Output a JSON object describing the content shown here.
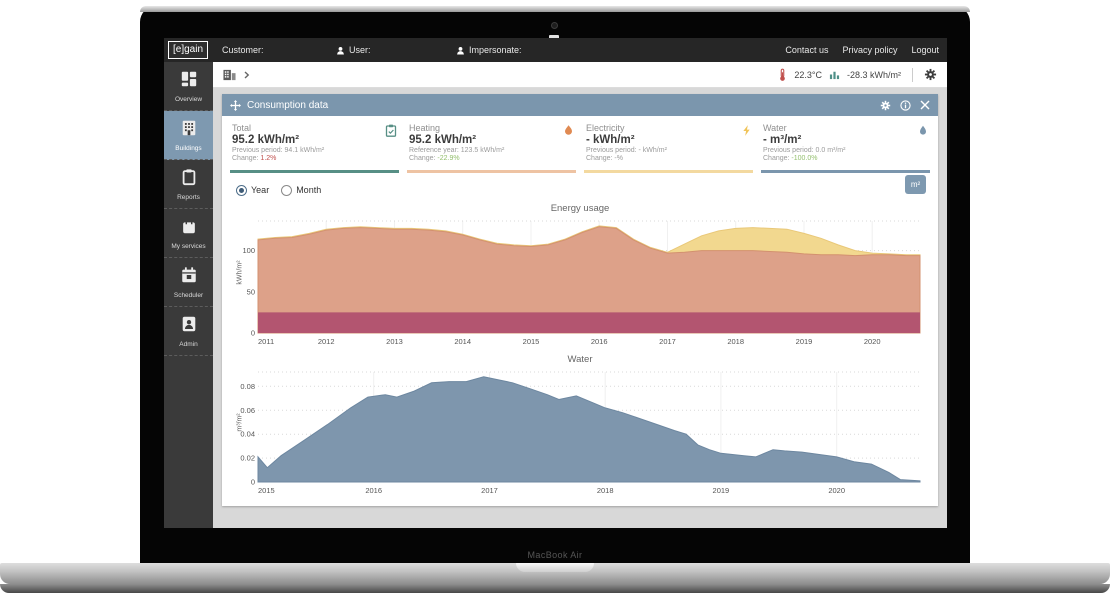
{
  "laptop": {
    "model_label": "MacBook Air"
  },
  "topbar": {
    "logo": "[e]gain",
    "customer_label": "Customer:",
    "user_label": "User:",
    "impersonate_label": "Impersonate:",
    "links": {
      "contact": "Contact us",
      "privacy": "Privacy policy",
      "logout": "Logout"
    }
  },
  "toolbar": {
    "temperature": "22.3°C",
    "energy_delta": "-28.3 kWh/m²"
  },
  "sidebar": {
    "active_color": "#7e99b0",
    "items": [
      {
        "label": "Overview",
        "icon": "grid-icon",
        "active": false
      },
      {
        "label": "Buildings",
        "icon": "building-icon",
        "active": true
      },
      {
        "label": "Reports",
        "icon": "clipboard-icon",
        "active": false
      },
      {
        "label": "My services",
        "icon": "bag-icon",
        "active": false
      },
      {
        "label": "Scheduler",
        "icon": "calendar-icon",
        "active": false
      },
      {
        "label": "Admin",
        "icon": "admin-icon",
        "active": false
      }
    ]
  },
  "panel": {
    "title": "Consumption data",
    "stats": [
      {
        "title": "Total",
        "value": "95.2 kWh/m²",
        "line1": "Previous period: 94.1 kWh/m²",
        "change_label": "Change:",
        "change": "1.2%",
        "change_color": "#c0504d",
        "accent": "#578f85",
        "icon": "clipboard-check-icon",
        "icon_color": "#578f85"
      },
      {
        "title": "Heating",
        "value": "95.2 kWh/m²",
        "line1": "Reference year: 123.5 kWh/m²",
        "change_label": "Change:",
        "change": "-22.9%",
        "change_color": "#93bf6d",
        "accent": "#eec3a3",
        "icon": "flame-icon",
        "icon_color": "#e08a52"
      },
      {
        "title": "Electricity",
        "value": "- kWh/m²",
        "line1": "Previous period: - kWh/m²",
        "change_label": "Change:",
        "change": "-%",
        "change_color": "#9b9b9b",
        "accent": "#f3d9a0",
        "icon": "lightning-icon",
        "icon_color": "#f0c45a"
      },
      {
        "title": "Water",
        "value": "- m³/m²",
        "line1": "Previous period: 0.0 m³/m²",
        "change_label": "Change:",
        "change": "-100.0%",
        "change_color": "#93bf6d",
        "accent": "#7b96ad",
        "icon": "droplet-icon",
        "icon_color": "#7b96ad"
      }
    ],
    "period_options": [
      {
        "label": "Year",
        "selected": true
      },
      {
        "label": "Month",
        "selected": false
      }
    ],
    "unit_button": "m²"
  },
  "colors": {
    "panel_header": "#7b96ad",
    "topbar_bg": "#262626",
    "sidebar_bg": "#3a3a3a",
    "teal": "#578f85",
    "salmon": "#dda189",
    "yellow": "#f2d88f",
    "red_band": "#b35570",
    "water_blue": "#7e96ad"
  },
  "chart_data": [
    {
      "type": "area",
      "title": "Energy usage",
      "ylabel": "kWh/m²",
      "ylim": [
        0,
        136
      ],
      "yticks": [
        0,
        50,
        100
      ],
      "xlim": [
        2011,
        2020.7
      ],
      "xticks": [
        2011,
        2012,
        2013,
        2014,
        2015,
        2016,
        2017,
        2018,
        2019,
        2020
      ],
      "mode": "series painted in order, each filled from 0 to value (overlay)",
      "x": [
        2011,
        2011.25,
        2011.5,
        2011.75,
        2012,
        2012.25,
        2012.5,
        2012.75,
        2013,
        2013.25,
        2013.5,
        2013.75,
        2014,
        2014.25,
        2014.5,
        2014.75,
        2015,
        2015.25,
        2015.5,
        2015.75,
        2016,
        2016.25,
        2016.5,
        2016.75,
        2017,
        2017.25,
        2017.5,
        2017.75,
        2018,
        2018.25,
        2018.5,
        2018.75,
        2019,
        2019.25,
        2019.5,
        2019.75,
        2020,
        2020.25,
        2020.5,
        2020.7
      ],
      "series": [
        {
          "name": "total-with-electricity-yellow",
          "color": "#f2d88f",
          "line": "#e9c878",
          "values": [
            114,
            116,
            117,
            121,
            126,
            128,
            129,
            128,
            127,
            127,
            126,
            124,
            120,
            114,
            109,
            107,
            106,
            108,
            114,
            123,
            130,
            128,
            114,
            104,
            98,
            108,
            118,
            124,
            127,
            128,
            127,
            126,
            121,
            115,
            107,
            100,
            97,
            96,
            95,
            95
          ]
        },
        {
          "name": "heating-salmon",
          "color": "#dda189",
          "line": "#d3916f",
          "values": [
            113,
            115,
            116,
            120,
            125,
            127,
            128,
            127,
            126,
            126,
            125,
            123,
            119,
            113,
            108,
            106,
            105,
            107,
            113,
            122,
            129,
            127,
            113,
            103,
            97,
            98,
            100,
            100,
            100,
            100,
            99,
            98,
            96,
            95,
            95,
            94,
            95,
            95,
            94,
            94
          ]
        },
        {
          "name": "lower-red-band",
          "color": "#b35570",
          "line": "none",
          "values": [
            25,
            25,
            25,
            25,
            25,
            25,
            25,
            25,
            25,
            25,
            25,
            25,
            25,
            25,
            25,
            25,
            25,
            25,
            25,
            25,
            25,
            25,
            25,
            25,
            25,
            25,
            25,
            25,
            25,
            25,
            25,
            25,
            25,
            25,
            25,
            25,
            25,
            25,
            25,
            25
          ]
        }
      ]
    },
    {
      "type": "area",
      "title": "Water",
      "ylabel": "m³/m²",
      "ylim": [
        0,
        0.092
      ],
      "yticks": [
        0,
        0.02,
        0.04,
        0.06,
        0.08
      ],
      "xlim": [
        2015,
        2020.72
      ],
      "xticks": [
        2015,
        2016,
        2017,
        2018,
        2019,
        2020
      ],
      "x": [
        2015,
        2015.08,
        2015.2,
        2015.4,
        2015.6,
        2015.8,
        2015.95,
        2016.1,
        2016.2,
        2016.35,
        2016.5,
        2016.65,
        2016.8,
        2016.95,
        2017.1,
        2017.2,
        2017.35,
        2017.5,
        2017.6,
        2017.75,
        2017.9,
        2018,
        2018.15,
        2018.3,
        2018.45,
        2018.6,
        2018.7,
        2018.8,
        2018.9,
        2019,
        2019.1,
        2019.2,
        2019.3,
        2019.45,
        2019.55,
        2019.7,
        2019.85,
        2020,
        2020.15,
        2020.3,
        2020.45,
        2020.55,
        2020.72
      ],
      "series": [
        {
          "name": "water-consumption",
          "color": "#7e96ad",
          "line": "#6d87a0",
          "values": [
            0.021,
            0.012,
            0.022,
            0.035,
            0.048,
            0.062,
            0.071,
            0.073,
            0.071,
            0.076,
            0.083,
            0.084,
            0.084,
            0.088,
            0.085,
            0.083,
            0.078,
            0.073,
            0.069,
            0.072,
            0.066,
            0.062,
            0.058,
            0.053,
            0.048,
            0.043,
            0.04,
            0.031,
            0.027,
            0.024,
            0.023,
            0.022,
            0.021,
            0.027,
            0.026,
            0.025,
            0.023,
            0.021,
            0.017,
            0.015,
            0.008,
            0.002,
            0.001
          ]
        }
      ]
    }
  ]
}
